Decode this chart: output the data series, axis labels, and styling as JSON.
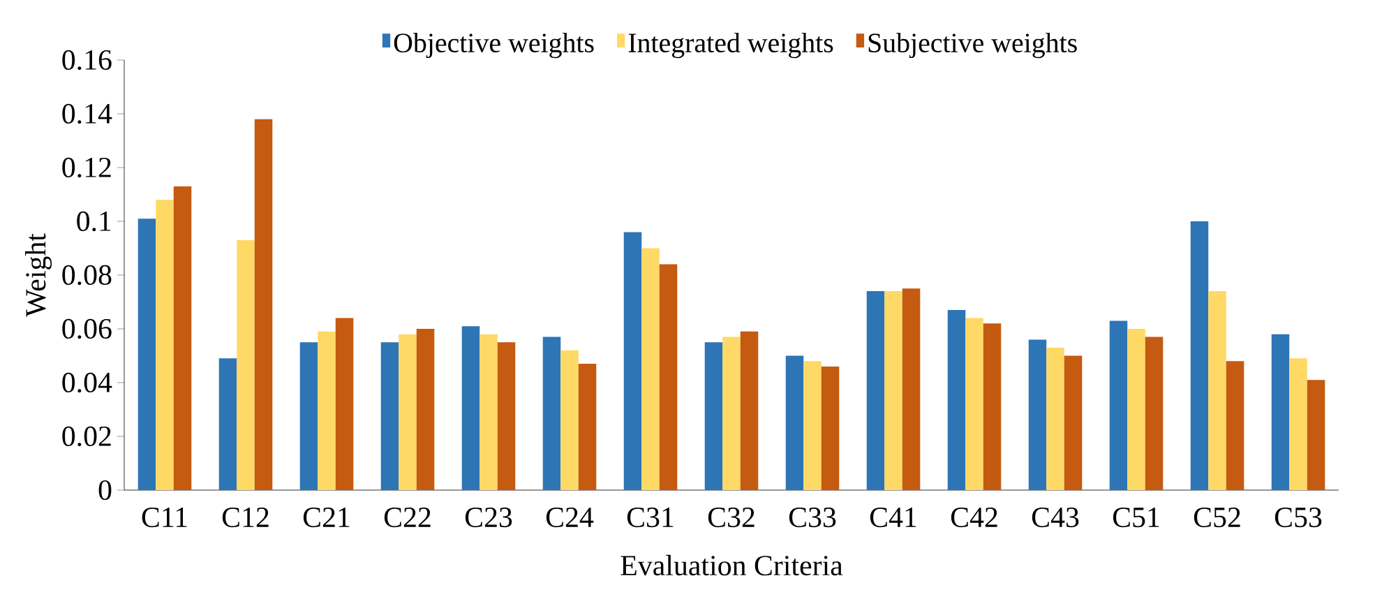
{
  "chart_data": {
    "type": "bar",
    "xlabel": "Evaluation Criteria",
    "ylabel": "Weight",
    "categories": [
      "C11",
      "C12",
      "C21",
      "C22",
      "C23",
      "C24",
      "C31",
      "C32",
      "C33",
      "C41",
      "C42",
      "C43",
      "C51",
      "C52",
      "C53"
    ],
    "series": [
      {
        "name": "Objective weights",
        "color": "#2e75b6",
        "values": [
          0.101,
          0.049,
          0.055,
          0.055,
          0.061,
          0.057,
          0.096,
          0.055,
          0.05,
          0.074,
          0.067,
          0.056,
          0.063,
          0.1,
          0.058
        ]
      },
      {
        "name": "Integrated weights",
        "color": "#ffd966",
        "values": [
          0.108,
          0.093,
          0.059,
          0.058,
          0.058,
          0.052,
          0.09,
          0.057,
          0.048,
          0.074,
          0.064,
          0.053,
          0.06,
          0.074,
          0.049
        ]
      },
      {
        "name": "Subjective weights",
        "color": "#c55a11",
        "values": [
          0.113,
          0.138,
          0.064,
          0.06,
          0.055,
          0.047,
          0.084,
          0.059,
          0.046,
          0.075,
          0.062,
          0.05,
          0.057,
          0.048,
          0.041
        ]
      }
    ],
    "ylim": [
      0,
      0.16
    ],
    "yticks": [
      0,
      0.02,
      0.04,
      0.06,
      0.08,
      0.1,
      0.12,
      0.14,
      0.16
    ],
    "grid": false,
    "legend": "top"
  }
}
